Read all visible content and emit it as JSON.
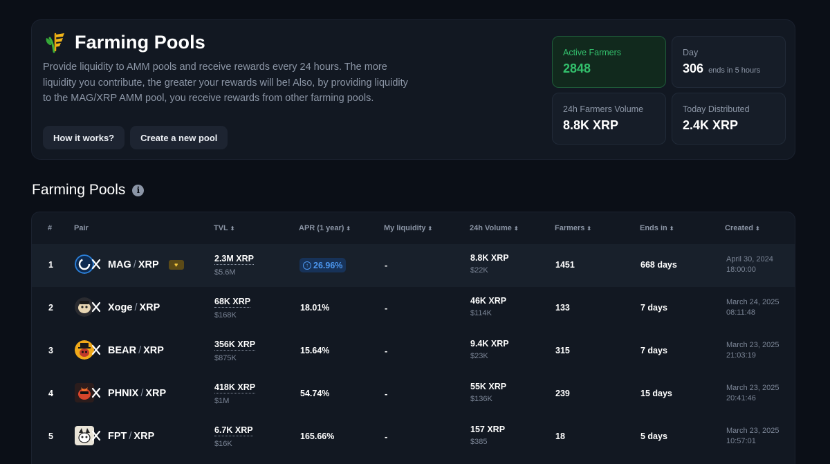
{
  "header": {
    "title": "Farming Pools",
    "description": "Provide liquidity to AMM pools and receive rewards every 24 hours. The more liquidity you contribute, the greater your rewards will be! Also, by providing liquidity to the MAG/XRP AMM pool, you receive rewards from other farming pools.",
    "btn_how": "How it works?",
    "btn_create": "Create a new pool"
  },
  "stats": {
    "active_farmers": {
      "label": "Active Farmers",
      "value": "2848"
    },
    "day": {
      "label": "Day",
      "value": "306",
      "sub": "ends in 5 hours"
    },
    "volume": {
      "label": "24h Farmers Volume",
      "value": "8.8K XRP"
    },
    "distributed": {
      "label": "Today Distributed",
      "value": "2.4K XRP"
    }
  },
  "section_title": "Farming Pools",
  "table": {
    "headers": {
      "num": "#",
      "pair": "Pair",
      "tvl": "TVL",
      "apr": "APR (1 year)",
      "liq": "My liquidity",
      "vol": "24h Volume",
      "farmers": "Farmers",
      "ends": "Ends in",
      "created": "Created"
    },
    "rows": [
      {
        "num": "1",
        "base": "MAG",
        "quote": "XRP",
        "tvl": "2.3M XRP",
        "tvl_usd": "$5.6M",
        "apr": "26.96%",
        "liq": "-",
        "vol": "8.8K XRP",
        "vol_usd": "$22K",
        "farmers": "1451",
        "ends": "668 days",
        "date": "April 30, 2024",
        "time": "18:00:00"
      },
      {
        "num": "2",
        "base": "Xoge",
        "quote": "XRP",
        "tvl": "68K XRP",
        "tvl_usd": "$168K",
        "apr": "18.01%",
        "liq": "-",
        "vol": "46K XRP",
        "vol_usd": "$114K",
        "farmers": "133",
        "ends": "7 days",
        "date": "March 24, 2025",
        "time": "08:11:48"
      },
      {
        "num": "3",
        "base": "BEAR",
        "quote": "XRP",
        "tvl": "356K XRP",
        "tvl_usd": "$875K",
        "apr": "15.64%",
        "liq": "-",
        "vol": "9.4K XRP",
        "vol_usd": "$23K",
        "farmers": "315",
        "ends": "7 days",
        "date": "March 23, 2025",
        "time": "21:03:19"
      },
      {
        "num": "4",
        "base": "PHNIX",
        "quote": "XRP",
        "tvl": "418K XRP",
        "tvl_usd": "$1M",
        "apr": "54.74%",
        "liq": "-",
        "vol": "55K XRP",
        "vol_usd": "$136K",
        "farmers": "239",
        "ends": "15 days",
        "date": "March 23, 2025",
        "time": "20:41:46"
      },
      {
        "num": "5",
        "base": "FPT",
        "quote": "XRP",
        "tvl": "6.7K XRP",
        "tvl_usd": "$16K",
        "apr": "165.66%",
        "liq": "-",
        "vol": "157 XRP",
        "vol_usd": "$385",
        "farmers": "18",
        "ends": "5 days",
        "date": "March 23, 2025",
        "time": "10:57:01"
      }
    ]
  }
}
